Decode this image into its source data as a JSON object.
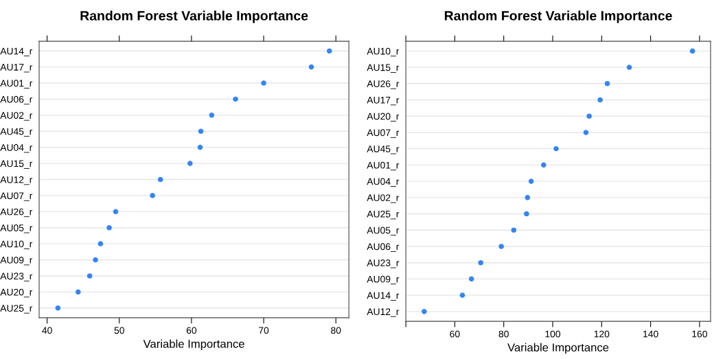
{
  "chart_data": [
    {
      "type": "scatter",
      "title": "Random Forest Variable Importance",
      "xlabel": "Variable Importance",
      "orientation": "horizontal",
      "categories": [
        "AU14_r",
        "AU17_r",
        "AU01_r",
        "AU06_r",
        "AU02_r",
        "AU45_r",
        "AU04_r",
        "AU15_r",
        "AU12_r",
        "AU07_r",
        "AU26_r",
        "AU05_r",
        "AU10_r",
        "AU09_r",
        "AU23_r",
        "AU20_r",
        "AU25_r"
      ],
      "series": [
        {
          "color": "#3385f5",
          "values": [
            79.1,
            76.6,
            70.0,
            66.1,
            62.8,
            61.3,
            61.2,
            59.8,
            55.7,
            54.6,
            49.5,
            48.6,
            47.4,
            46.7,
            45.9,
            44.3,
            41.5
          ]
        }
      ],
      "xlim": [
        38.9,
        81.8
      ],
      "xticks": [
        40,
        50,
        60,
        70,
        80
      ],
      "grid": "y",
      "marker": "circle"
    },
    {
      "type": "scatter",
      "title": "Random Forest Variable Importance",
      "xlabel": "Variable Importance",
      "orientation": "horizontal",
      "categories": [
        "AU10_r",
        "AU15_r",
        "AU26_r",
        "AU17_r",
        "AU20_r",
        "AU07_r",
        "AU45_r",
        "AU01_r",
        "AU04_r",
        "AU02_r",
        "AU25_r",
        "AU05_r",
        "AU06_r",
        "AU23_r",
        "AU09_r",
        "AU14_r",
        "AU12_r"
      ],
      "series": [
        {
          "color": "#3385f5",
          "values": [
            157.1,
            131.3,
            122.3,
            119.4,
            114.9,
            113.6,
            101.4,
            96.3,
            91.2,
            89.7,
            89.3,
            84.1,
            79.0,
            70.6,
            66.8,
            63.1,
            47.5
          ]
        }
      ],
      "xlim": [
        40,
        164.5
      ],
      "xticks": [
        {
          "value": 40,
          "label": null
        },
        60,
        80,
        100,
        120,
        140,
        160
      ],
      "grid": "y",
      "marker": "circle"
    }
  ]
}
